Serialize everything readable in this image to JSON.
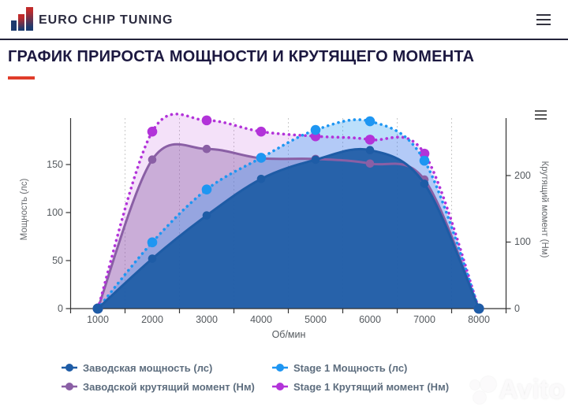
{
  "header": {
    "brand": "EURO CHIP TUNING"
  },
  "icons": {
    "brand_logo": "ascending-bar-chart",
    "nav_menu": "hamburger-menu",
    "chart_menu": "hamburger-menu"
  },
  "page": {
    "title": "ГРАФИК ПРИРОСТА МОЩНОСТИ И КРУТЯЩЕГО МОМЕНТА"
  },
  "chart_data": {
    "type": "area",
    "x": [
      1000,
      2000,
      3000,
      4000,
      5000,
      6000,
      7000,
      8000
    ],
    "x_tick_labels": [
      "1000",
      "2000",
      "3000",
      "4000",
      "5000",
      "6000",
      "7000",
      "8000"
    ],
    "xlabel": "Об/мин",
    "grid": "vertical-dotted-between-categories",
    "legend_position": "bottom",
    "yleft": {
      "title": "Мощность (лс)",
      "ticks": [
        "0",
        "50",
        "100",
        "150"
      ],
      "tick_values": [
        0,
        50,
        100,
        150
      ],
      "ylim": [
        0,
        198
      ]
    },
    "yright": {
      "title": "Крутящий момент (Нм)",
      "ticks": [
        "0",
        "100",
        "200"
      ],
      "tick_values": [
        0,
        100,
        200
      ],
      "ylim": [
        0,
        286
      ]
    },
    "series": [
      {
        "name": "Заводская мощность (лс)",
        "axis": "power",
        "style": "solid",
        "color": "#1e5ca6",
        "fill": "rgba(30,92,166,0.93)",
        "values": [
          0,
          52,
          97,
          135,
          155,
          165,
          130,
          0
        ]
      },
      {
        "name": "Stage 1 Мощность (лс)",
        "axis": "power",
        "style": "dotted",
        "color": "#1e96f2",
        "fill": "rgba(30,150,242,0.30)",
        "values": [
          0,
          69,
          124,
          157,
          186,
          195,
          154,
          0
        ]
      },
      {
        "name": "Заводской крутящий момент (Нм)",
        "axis": "torque",
        "style": "solid",
        "color": "#8a5fa5",
        "fill": "rgba(140,95,167,0.40)",
        "values": [
          0,
          224,
          240,
          226,
          225,
          218,
          194,
          0
        ]
      },
      {
        "name": "Stage 1 Крутящий момент (Нм)",
        "axis": "torque",
        "style": "dotted",
        "color": "#b233d9",
        "fill": "rgba(178,51,217,0.15)",
        "values": [
          0,
          266,
          283,
          266,
          259,
          254,
          233,
          0
        ]
      }
    ]
  },
  "watermark": {
    "label": "Avito"
  }
}
